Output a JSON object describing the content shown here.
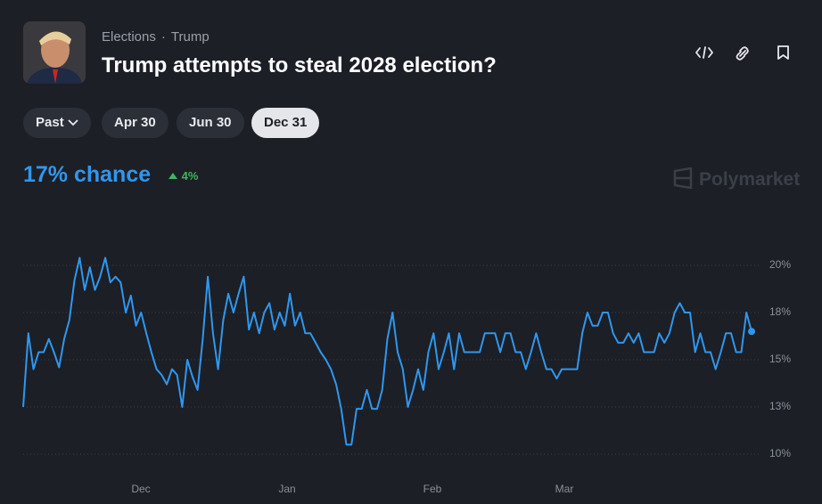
{
  "header": {
    "category": "Elections",
    "separator": "·",
    "tag": "Trump",
    "title": "Trump attempts to steal 2028 election?"
  },
  "filters": [
    "Past",
    "Apr 30",
    "Jun 30",
    "Dec 31"
  ],
  "summary": {
    "chance": "17% chance",
    "change": "4%",
    "brand": "Polymarket"
  },
  "chart_data": {
    "type": "line",
    "color": "#2f97ee",
    "values": [
      12.5,
      16.4,
      14.5,
      15.4,
      15.4,
      16.1,
      15.4,
      14.6,
      16.1,
      17.1,
      19.2,
      20.4,
      18.7,
      19.9,
      18.7,
      19.4,
      20.4,
      19.1,
      19.4,
      19.1,
      17.5,
      18.4,
      16.8,
      17.5,
      16.4,
      15.4,
      14.5,
      14.2,
      13.7,
      14.5,
      14.2,
      12.5,
      15.0,
      14.1,
      13.4,
      16.1,
      19.4,
      16.4,
      14.5,
      17.1,
      18.5,
      17.5,
      18.5,
      19.4,
      16.6,
      17.5,
      16.4,
      17.5,
      18.0,
      16.6,
      17.5,
      16.8,
      18.5,
      16.8,
      17.5,
      16.4,
      16.4,
      15.9,
      15.4,
      15.0,
      14.5,
      13.7,
      12.4,
      10.5,
      10.5,
      12.4,
      12.4,
      13.4,
      12.4,
      12.4,
      13.4,
      16.1,
      17.5,
      15.4,
      14.5,
      12.5,
      13.4,
      14.5,
      13.4,
      15.4,
      16.4,
      14.5,
      15.4,
      16.4,
      14.5,
      16.4,
      15.4,
      15.4,
      15.4,
      15.4,
      16.4,
      16.4,
      16.4,
      15.4,
      16.4,
      16.4,
      15.4,
      15.4,
      14.5,
      15.4,
      16.4,
      15.4,
      14.5,
      14.5,
      14.0,
      14.5,
      14.5,
      14.5,
      14.5,
      16.4,
      17.5,
      16.8,
      16.8,
      17.5,
      17.5,
      16.4,
      15.9,
      15.9,
      16.4,
      15.9,
      16.4,
      15.4,
      15.4,
      15.4,
      16.4,
      15.9,
      16.4,
      17.5,
      18.0,
      17.5,
      17.5,
      15.4,
      16.4,
      15.4,
      15.4,
      14.5,
      15.4,
      16.4,
      16.4,
      15.4,
      15.4,
      17.5,
      16.5
    ],
    "ylim": [
      9.5,
      22.5
    ],
    "yticks": [
      {
        "value": 20,
        "label": "20%"
      },
      {
        "value": 17.5,
        "label": "18%"
      },
      {
        "value": 15,
        "label": "15%"
      },
      {
        "value": 12.5,
        "label": "13%"
      },
      {
        "value": 10,
        "label": "10%"
      }
    ],
    "month_labels": [
      "Dec",
      "Jan",
      "Feb",
      "Mar"
    ],
    "grid": true
  }
}
